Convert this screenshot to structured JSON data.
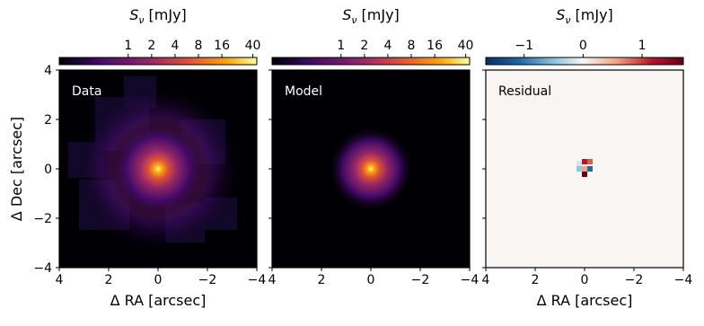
{
  "chart_data": [
    {
      "type": "image",
      "title": "Data",
      "cmap": "inferno",
      "xlabel": "Δ RA [arcsec]",
      "ylabel": "Δ Dec [arcsec]",
      "xlim": [
        4,
        -4
      ],
      "ylim": [
        -4,
        4
      ],
      "xticks": [
        4,
        2,
        0,
        {
          "value": -2,
          "label": "−2"
        },
        {
          "value": -4,
          "label": "−4"
        }
      ],
      "yticks": [
        {
          "value": -4,
          "label": "−4"
        },
        {
          "value": -2,
          "label": "−2"
        },
        0,
        2,
        4
      ],
      "colorbar": {
        "symbol": "S",
        "subscript": "ν",
        "unit": "[mJy]",
        "scale": "log",
        "lim": [
          0.13,
          45
        ],
        "ticks": [
          1,
          2,
          4,
          8,
          16,
          40
        ]
      }
    },
    {
      "type": "image",
      "title": "Model",
      "cmap": "inferno",
      "xlim": [
        4,
        -4
      ],
      "ylim": [
        -4,
        4
      ],
      "xticks": [
        4,
        2,
        0,
        {
          "value": -2,
          "label": "−2"
        },
        {
          "value": -4,
          "label": "−4"
        }
      ],
      "yticks": [
        -4,
        -2,
        0,
        2,
        4
      ],
      "colorbar": {
        "symbol": "S",
        "subscript": "ν",
        "unit": "[mJy]",
        "scale": "log",
        "lim": [
          0.13,
          45
        ],
        "ticks": [
          1,
          2,
          4,
          8,
          16,
          40
        ]
      }
    },
    {
      "type": "image",
      "title": "Residual",
      "cmap": "RdBu_r",
      "xlabel": "Δ RA [arcsec]",
      "xlim": [
        4,
        -4
      ],
      "ylim": [
        -4,
        4
      ],
      "xticks": [
        4,
        2,
        0,
        {
          "value": -2,
          "label": "−2"
        },
        {
          "value": -4,
          "label": "−4"
        }
      ],
      "yticks": [
        -4,
        -2,
        0,
        2,
        4
      ],
      "colorbar": {
        "symbol": "S",
        "subscript": "ν",
        "unit": "[mJy]",
        "scale": "linear",
        "lim": [
          -1.65,
          1.7
        ],
        "ticks": [
          {
            "value": -1,
            "label": "−1"
          },
          0,
          1
        ]
      }
    }
  ]
}
